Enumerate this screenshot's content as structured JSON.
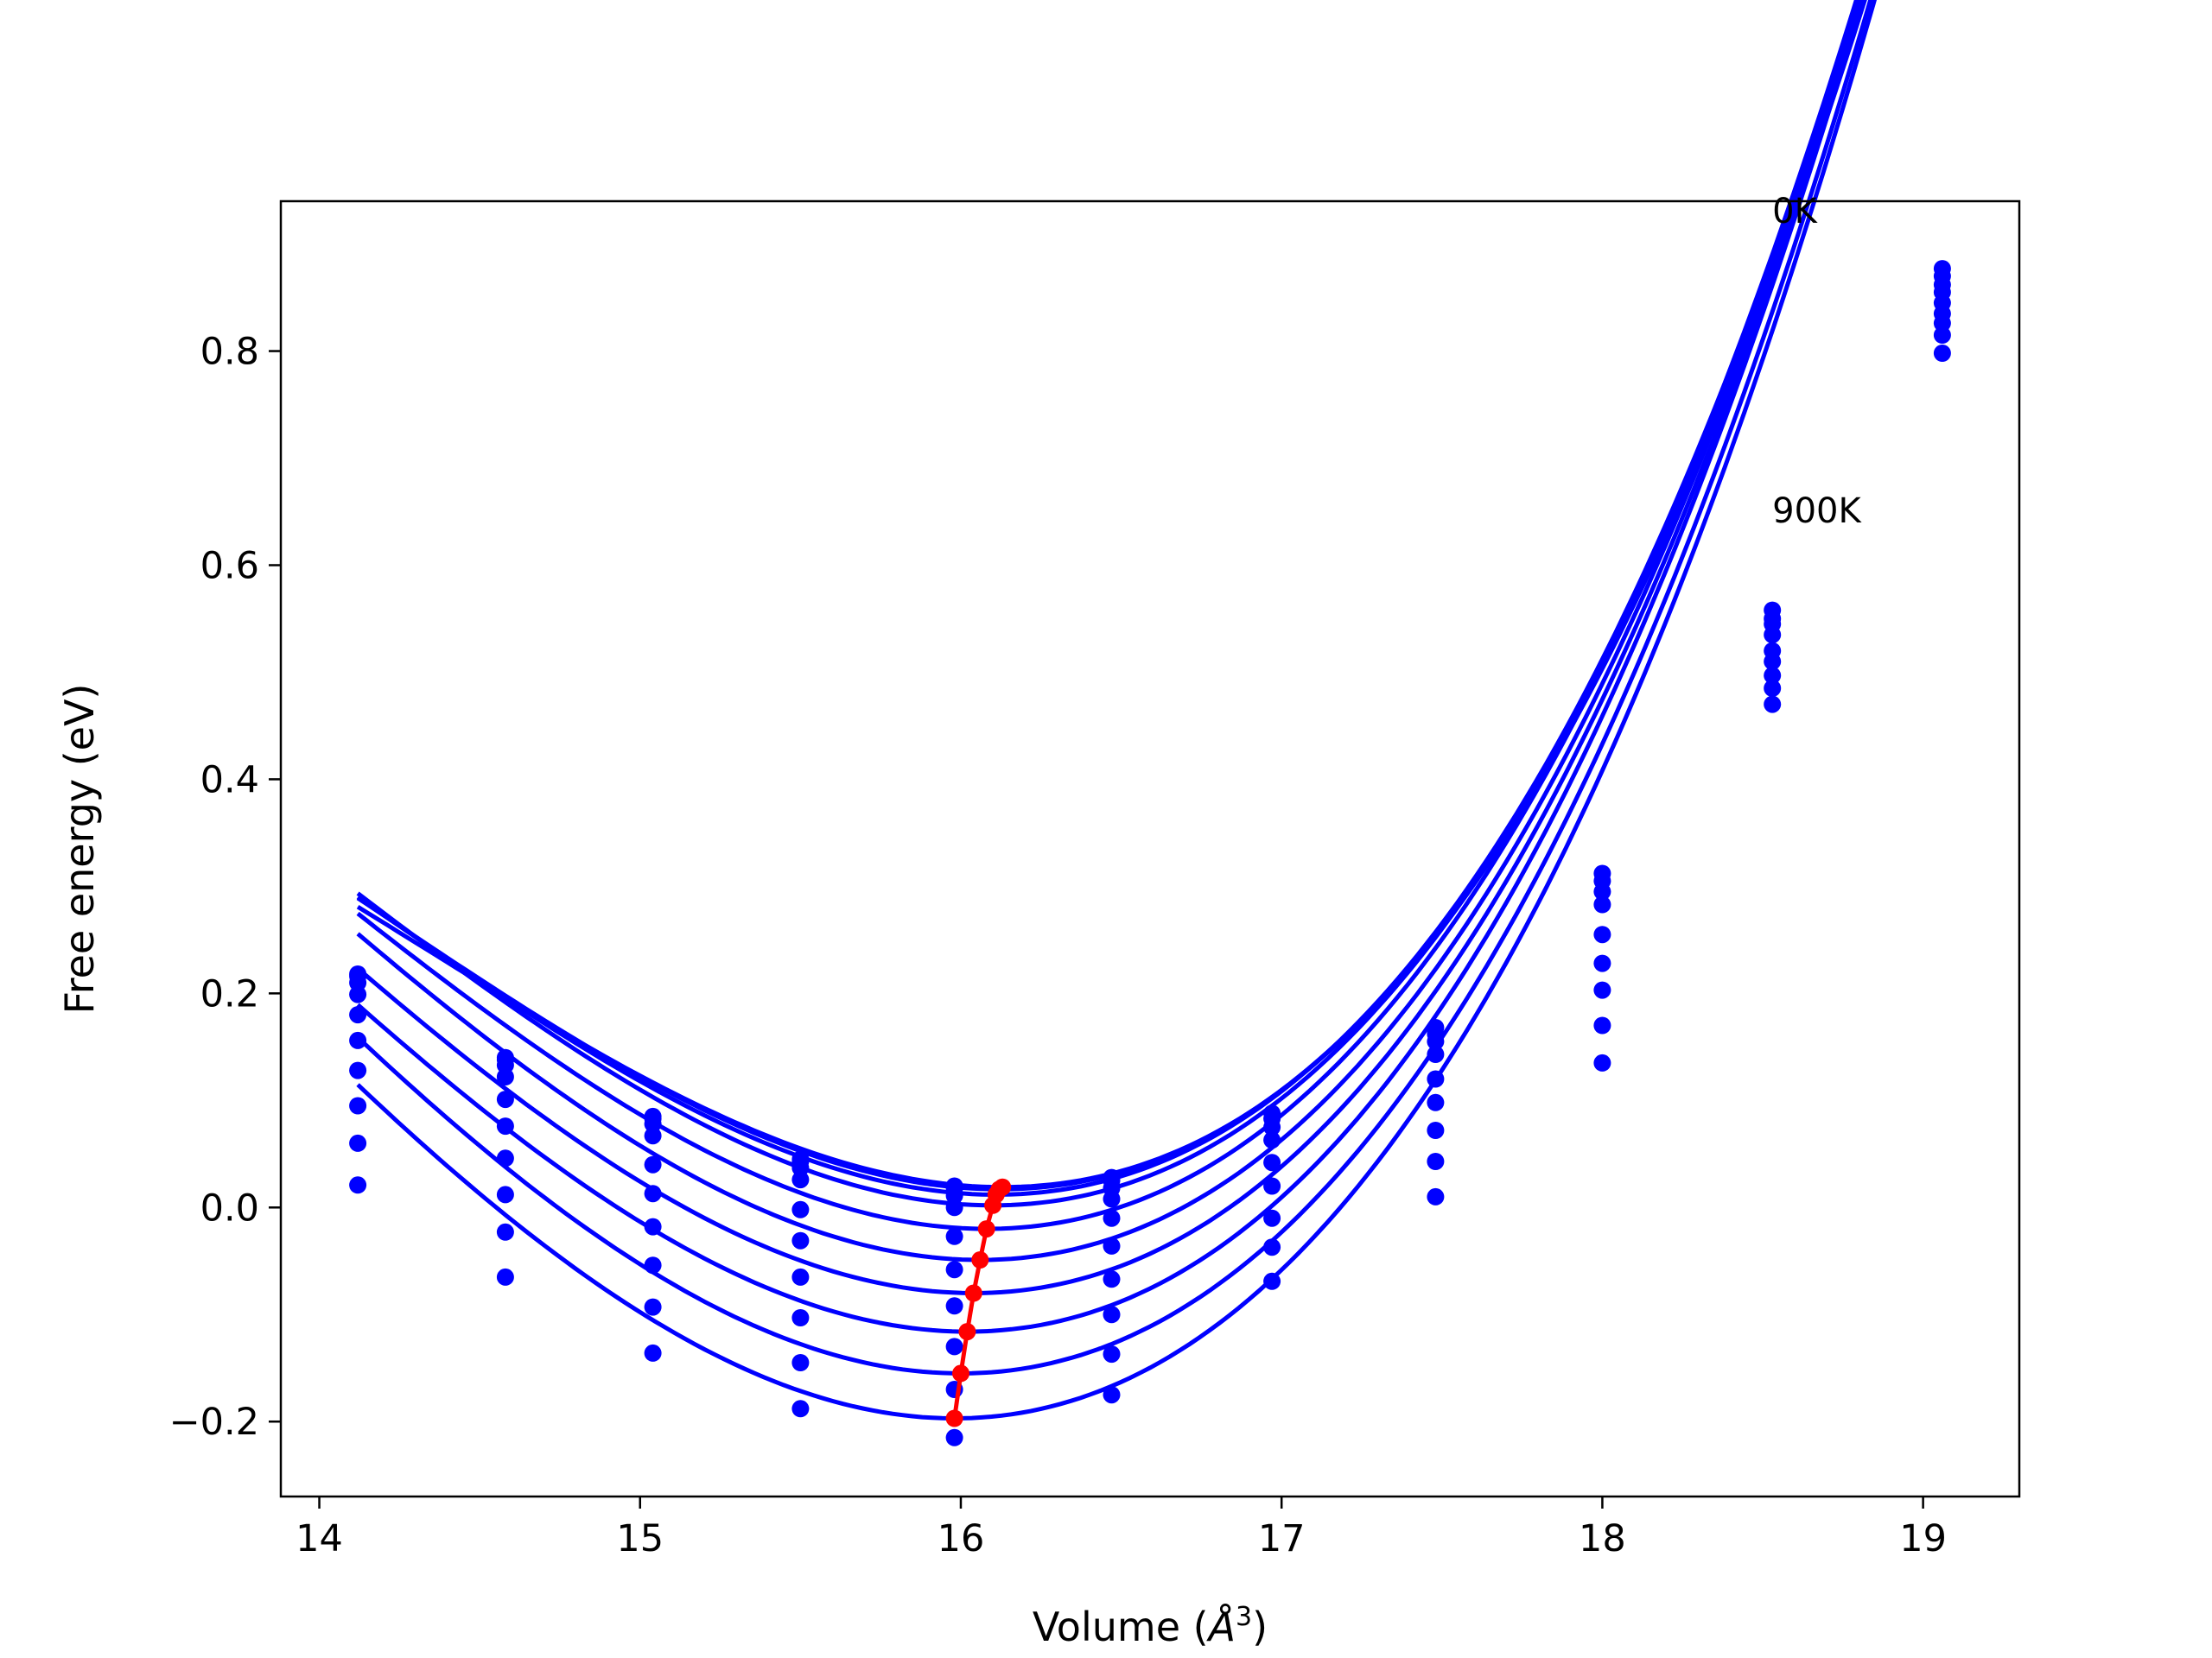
{
  "chart_data": {
    "type": "line",
    "xlabel_prefix": "Volume (",
    "xlabel_unit": "Å",
    "xlabel_sup": "3",
    "xlabel_suffix": ")",
    "ylabel": "Free energy (eV)",
    "xlim": [
      13.88,
      19.3
    ],
    "ylim": [
      -0.27,
      0.94
    ],
    "xticks": [
      14,
      15,
      16,
      17,
      18,
      19
    ],
    "xtick_labels": [
      "14",
      "15",
      "16",
      "17",
      "18",
      "19"
    ],
    "yticks": [
      -0.2,
      0.0,
      0.2,
      0.4,
      0.6,
      0.8
    ],
    "ytick_labels": [
      "−0.2",
      "0.0",
      "0.2",
      "0.4",
      "0.6",
      "0.8"
    ],
    "annotations": [
      {
        "text": "0K",
        "x": 18.53,
        "y": 0.92
      },
      {
        "text": "900K",
        "x": 18.53,
        "y": 0.64
      }
    ],
    "colors": {
      "fit_curves": "#0000ff",
      "data_points": "#0000ff",
      "minimum_line": "#ff0000"
    },
    "volumes": [
      14.12,
      14.58,
      15.04,
      15.5,
      15.98,
      16.47,
      16.97,
      17.48,
      18.0,
      18.53,
      19.06
    ],
    "series": [
      {
        "values": [
          0.218,
          0.14,
          0.085,
          0.045,
          0.02,
          0.028,
          0.088,
          0.168,
          0.312,
          0.558,
          0.877
        ]
      },
      {
        "values": [
          0.216,
          0.138,
          0.083,
          0.043,
          0.018,
          0.025,
          0.083,
          0.162,
          0.305,
          0.55,
          0.87
        ]
      },
      {
        "values": [
          0.21,
          0.133,
          0.078,
          0.037,
          0.011,
          0.018,
          0.075,
          0.155,
          0.295,
          0.545,
          0.862
        ]
      },
      {
        "values": [
          0.199,
          0.122,
          0.067,
          0.026,
          0.0,
          0.008,
          0.063,
          0.143,
          0.283,
          0.535,
          0.855
        ]
      },
      {
        "values": [
          0.18,
          0.101,
          0.04,
          -0.002,
          -0.027,
          -0.01,
          0.042,
          0.12,
          0.255,
          0.52,
          0.845
        ]
      },
      {
        "values": [
          0.156,
          0.076,
          0.013,
          -0.031,
          -0.058,
          -0.036,
          0.02,
          0.098,
          0.228,
          0.51,
          0.835
        ]
      },
      {
        "values": [
          0.128,
          0.046,
          -0.018,
          -0.065,
          -0.092,
          -0.067,
          -0.01,
          0.072,
          0.203,
          0.497,
          0.826
        ]
      },
      {
        "values": [
          0.095,
          0.012,
          -0.054,
          -0.103,
          -0.13,
          -0.1,
          -0.037,
          0.043,
          0.17,
          0.485,
          0.815
        ]
      },
      {
        "values": [
          0.06,
          -0.023,
          -0.093,
          -0.145,
          -0.17,
          -0.137,
          -0.069,
          0.01,
          0.135,
          0.47,
          0.798
        ]
      },
      {
        "values": [
          0.021,
          -0.065,
          -0.136,
          -0.188,
          -0.215,
          -0.175
        ]
      }
    ],
    "fit_curves": [
      {
        "v0": 16.13,
        "e0": 0.019,
        "a": 0.103,
        "b": 0.019
      },
      {
        "v0": 16.12,
        "e0": 0.017,
        "a": 0.104,
        "b": 0.018
      },
      {
        "v0": 16.11,
        "e0": 0.012,
        "a": 0.106,
        "b": 0.018
      },
      {
        "v0": 16.1,
        "e0": 0.002,
        "a": 0.108,
        "b": 0.017
      },
      {
        "v0": 16.08,
        "e0": -0.02,
        "a": 0.11,
        "b": 0.017
      },
      {
        "v0": 16.06,
        "e0": -0.049,
        "a": 0.112,
        "b": 0.016
      },
      {
        "v0": 16.04,
        "e0": -0.08,
        "a": 0.113,
        "b": 0.016
      },
      {
        "v0": 16.02,
        "e0": -0.116,
        "a": 0.115,
        "b": 0.016
      },
      {
        "v0": 16.0,
        "e0": -0.155,
        "a": 0.117,
        "b": 0.015
      },
      {
        "v0": 15.98,
        "e0": -0.197,
        "a": 0.118,
        "b": 0.015
      }
    ],
    "fit_range": [
      14.12,
      19.06
    ],
    "minimum_line": {
      "x": [
        16.13,
        16.12,
        16.11,
        16.1,
        16.08,
        16.06,
        16.04,
        16.02,
        16.0,
        15.98
      ],
      "y": [
        0.019,
        0.017,
        0.012,
        0.002,
        -0.02,
        -0.049,
        -0.08,
        -0.116,
        -0.155,
        -0.197
      ]
    }
  }
}
